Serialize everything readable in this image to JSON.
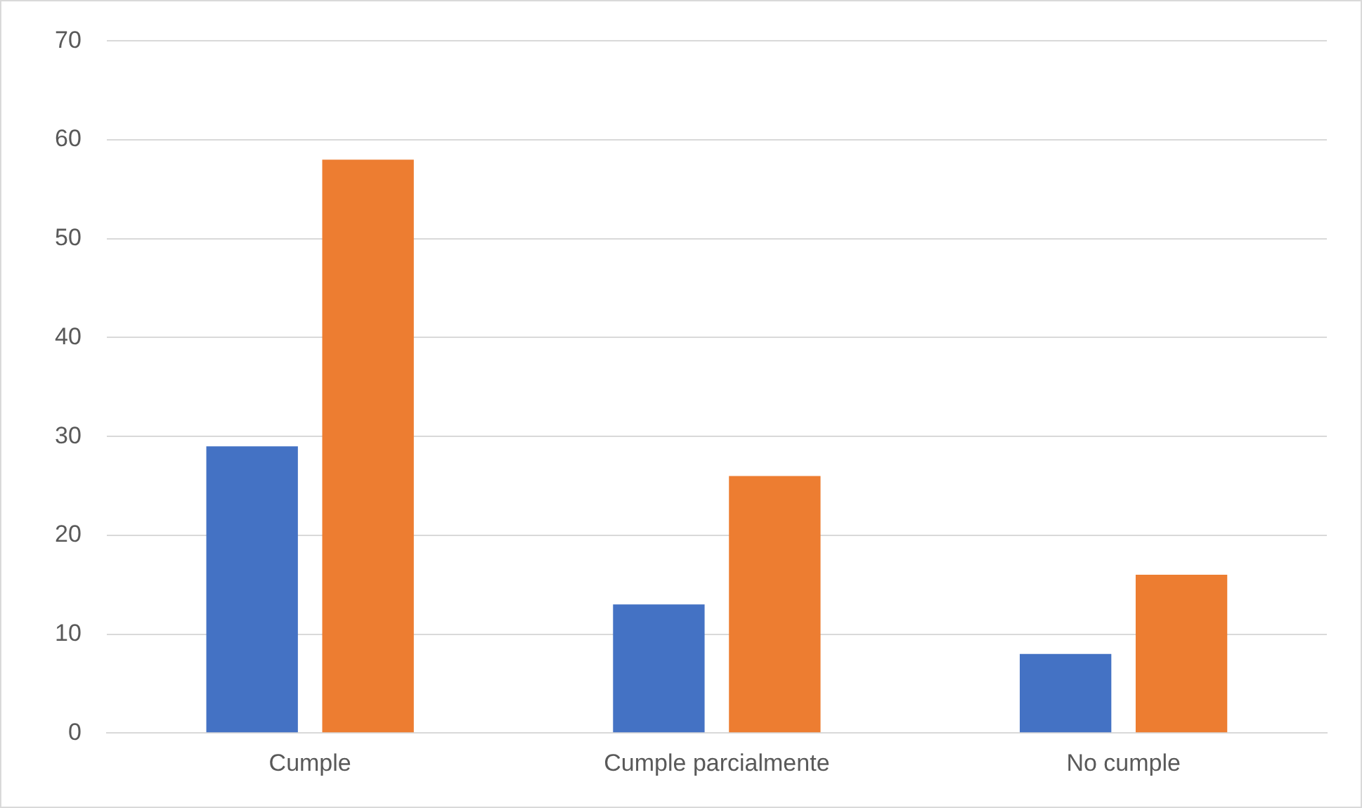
{
  "chart_data": {
    "type": "bar",
    "categories": [
      "Cumple",
      "Cumple parcialmente",
      "No cumple"
    ],
    "series": [
      {
        "color": "#4472c4",
        "values": [
          29,
          13,
          8
        ]
      },
      {
        "color": "#ed7d31",
        "values": [
          58,
          26,
          16
        ]
      }
    ],
    "ylim": [
      0,
      70
    ],
    "yticks": [
      0,
      10,
      20,
      30,
      40,
      50,
      60,
      70
    ],
    "grid": "y",
    "legend": false
  }
}
